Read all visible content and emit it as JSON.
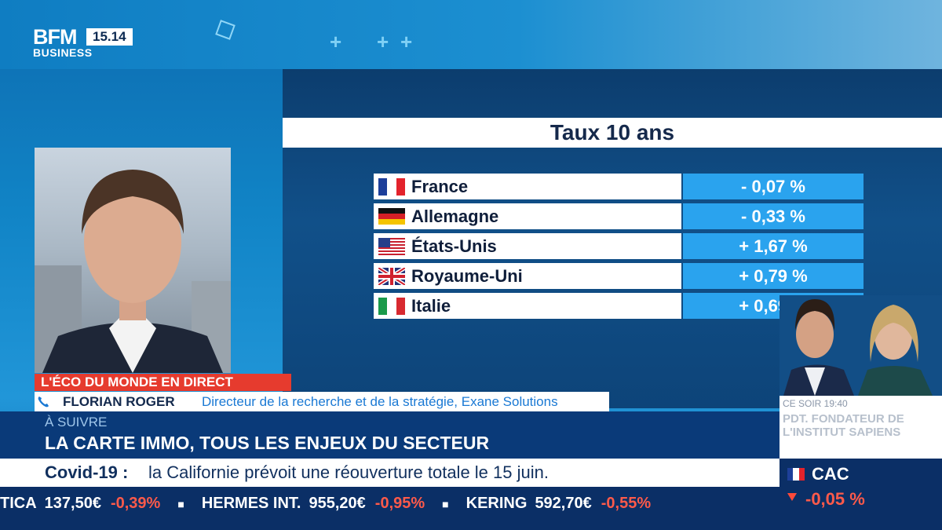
{
  "channel": {
    "logo_main": "BFM",
    "logo_sub": "BUSINESS",
    "time": "15.14"
  },
  "graphic": {
    "title": "Taux 10 ans",
    "rows": [
      {
        "country": "France",
        "flag": "france-flag-icon",
        "value": "- 0,07 %"
      },
      {
        "country": "Allemagne",
        "flag": "germany-flag-icon",
        "value": "- 0,33 %"
      },
      {
        "country": "États-Unis",
        "flag": "usa-flag-icon",
        "value": "+ 1,67 %"
      },
      {
        "country": "Royaume-Uni",
        "flag": "uk-flag-icon",
        "value": "+ 0,79 %"
      },
      {
        "country": "Italie",
        "flag": "italy-flag-icon",
        "value": "+ 0,69 %"
      }
    ]
  },
  "lower_third": {
    "program": "L'ÉCO DU MONDE EN DIRECT",
    "guest_name": "FLORIAN ROGER",
    "guest_role": "Directeur de la recherche et de la stratégie, Exane Solutions"
  },
  "up_next": {
    "label": "À SUIVRE",
    "title": "LA CARTE IMMO, TOUS LES ENJEUX DU SECTEUR"
  },
  "tonight": {
    "time": "CE SOIR 19:40",
    "title": "PDT. FONDATEUR DE L'INSTITUT SAPIENS"
  },
  "news_ticker": {
    "headline": "Covid-19 :",
    "text": "la Californie prévoit une réouverture totale le 15 juin."
  },
  "stock_ticker": [
    {
      "name": "TICA",
      "price": "137,50€",
      "change": "-0,39%"
    },
    {
      "name": "HERMES INT.",
      "price": "955,20€",
      "change": "-0,95%"
    },
    {
      "name": "KERING",
      "price": "592,70€",
      "change": "-0,55%"
    }
  ],
  "index": {
    "name": "CAC",
    "change": "-0,05 %",
    "color_down": "#ff5a4a"
  },
  "colors": {
    "accent_red": "#e63b2e",
    "value_blue": "#2aa3ee",
    "navy": "#0b2f66"
  }
}
